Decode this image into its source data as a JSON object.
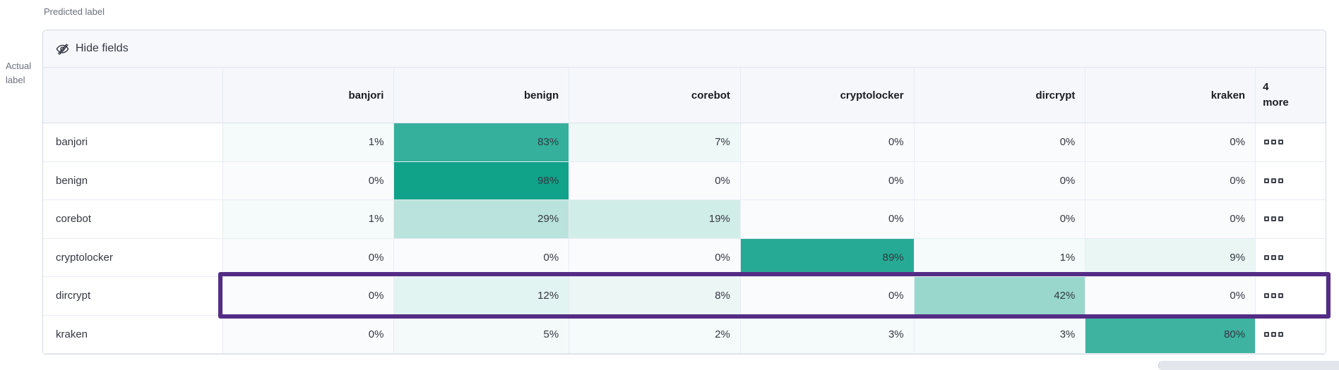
{
  "labels": {
    "predicted_axis": "Predicted label",
    "actual_axis_line1": "Actual",
    "actual_axis_line2": "label"
  },
  "toolbar": {
    "hide_fields": "Hide fields",
    "icon": "eye-closed-icon"
  },
  "grid": {
    "columns": [
      "banjori",
      "benign",
      "corebot",
      "cryptolocker",
      "dircrypt",
      "kraken"
    ],
    "more_header_line1": "4",
    "more_header_line2": "more",
    "more_cell_icon": "boxes-horizontal-icon",
    "rows": [
      {
        "label": "banjori",
        "values": [
          1,
          83,
          7,
          0,
          0,
          0
        ]
      },
      {
        "label": "benign",
        "values": [
          0,
          98,
          0,
          0,
          0,
          0
        ]
      },
      {
        "label": "corebot",
        "values": [
          1,
          29,
          19,
          0,
          0,
          0
        ]
      },
      {
        "label": "cryptolocker",
        "values": [
          0,
          0,
          0,
          89,
          1,
          9
        ]
      },
      {
        "label": "dircrypt",
        "values": [
          0,
          12,
          8,
          0,
          42,
          0
        ]
      },
      {
        "label": "kraken",
        "values": [
          0,
          5,
          2,
          3,
          3,
          80
        ]
      }
    ],
    "value_suffix": "%",
    "highlighted_row": "dircrypt"
  },
  "colors": {
    "heat_base": "#0ca088",
    "zero_cell_bg": "#fafbfd",
    "highlight_border": "#542c85"
  },
  "chart_data": {
    "type": "heatmap",
    "xlabel": "Predicted label",
    "ylabel": "Actual label",
    "x_categories": [
      "banjori",
      "benign",
      "corebot",
      "cryptolocker",
      "dircrypt",
      "kraken"
    ],
    "y_categories": [
      "banjori",
      "benign",
      "corebot",
      "cryptolocker",
      "dircrypt",
      "kraken"
    ],
    "values_percent": [
      [
        1,
        83,
        7,
        0,
        0,
        0
      ],
      [
        0,
        98,
        0,
        0,
        0,
        0
      ],
      [
        1,
        29,
        19,
        0,
        0,
        0
      ],
      [
        0,
        0,
        0,
        89,
        1,
        9
      ],
      [
        0,
        12,
        8,
        0,
        42,
        0
      ],
      [
        0,
        5,
        2,
        3,
        3,
        80
      ]
    ],
    "hidden_columns_badge": "4 more",
    "highlighted_y_category": "dircrypt",
    "legend_position": "none",
    "grid_lines": true
  }
}
